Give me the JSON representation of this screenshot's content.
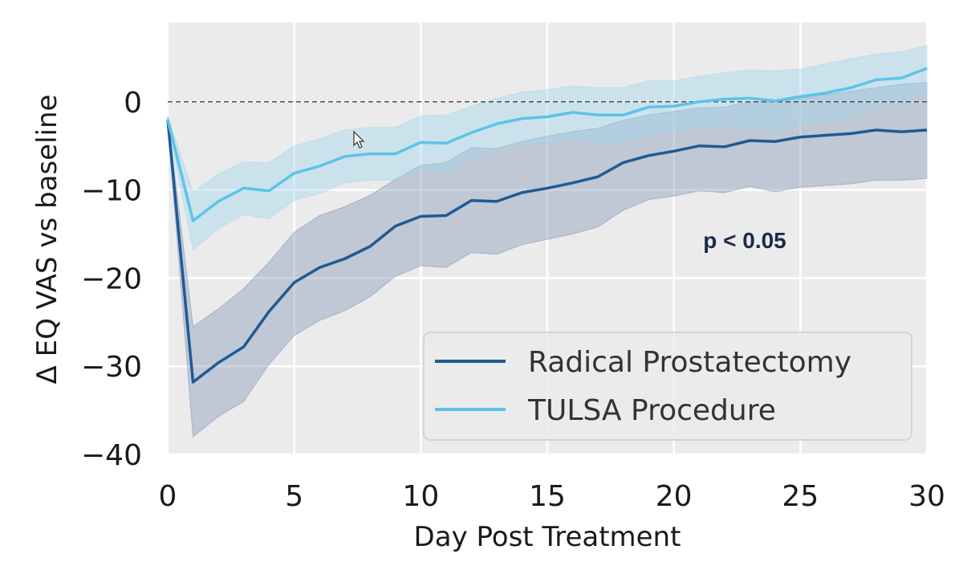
{
  "chart_data": {
    "type": "line",
    "title": "",
    "xlabel": "Day Post Treatment",
    "ylabel": "Δ EQ VAS vs baseline",
    "xlim": [
      0,
      30
    ],
    "ylim": [
      -40,
      9
    ],
    "xticks": [
      0,
      5,
      10,
      15,
      20,
      25,
      30
    ],
    "yticks": [
      -40,
      -30,
      -20,
      -10,
      0
    ],
    "xtick_labels": [
      "0",
      "5",
      "10",
      "15",
      "20",
      "25",
      "30"
    ],
    "ytick_labels": [
      "−40",
      "−30",
      "−20",
      "−10",
      "0"
    ],
    "grid": true,
    "reference_line": 0,
    "legend_position": "lower-right",
    "annotation": "p < 0.05",
    "x": [
      0,
      1,
      2,
      3,
      4,
      5,
      6,
      7,
      8,
      9,
      10,
      11,
      12,
      13,
      14,
      15,
      16,
      17,
      18,
      19,
      20,
      21,
      22,
      23,
      24,
      25,
      26,
      27,
      28,
      29,
      30
    ],
    "series": [
      {
        "name": "Radical Prostatectomy",
        "color": "#1f5a94",
        "band_color": "#7890b0",
        "values": [
          -2,
          -31.8,
          -29.6,
          -27.8,
          -23.8,
          -20.5,
          -18.8,
          -17.8,
          -16.4,
          -14.1,
          -13,
          -12.9,
          -11.2,
          -11.3,
          -10.3,
          -9.8,
          -9.2,
          -8.5,
          -6.9,
          -6.1,
          -5.6,
          -5,
          -5.1,
          -4.4,
          -4.5,
          -4,
          -3.8,
          -3.6,
          -3.2,
          -3.4,
          -3.2
        ],
        "upper": [
          -1.6,
          -25.5,
          -23.5,
          -21.2,
          -18.2,
          -14.8,
          -12.9,
          -11.9,
          -10.6,
          -8.8,
          -7.2,
          -6.9,
          -5.2,
          -5.3,
          -4.5,
          -3.9,
          -3.4,
          -3,
          -2.1,
          -1.5,
          -1.1,
          -0.7,
          -0.6,
          0,
          0,
          0.4,
          0.8,
          1.2,
          1.6,
          2,
          2.2
        ],
        "lower": [
          -2.4,
          -38,
          -35.7,
          -34,
          -29.8,
          -26.5,
          -24.8,
          -23.7,
          -22.1,
          -19.8,
          -18.6,
          -18.8,
          -17.1,
          -17.3,
          -16.2,
          -15.6,
          -15,
          -14.2,
          -12.3,
          -11.1,
          -10.7,
          -10.1,
          -10.3,
          -9.6,
          -10.2,
          -9.7,
          -9.5,
          -9.3,
          -8.9,
          -8.9,
          -8.7
        ]
      },
      {
        "name": "TULSA Procedure",
        "color": "#5cc3e8",
        "band_color": "#a0d6ee",
        "values": [
          -2,
          -13.5,
          -11.3,
          -9.8,
          -10.1,
          -8.1,
          -7.3,
          -6.2,
          -5.9,
          -5.9,
          -4.6,
          -4.7,
          -3.5,
          -2.5,
          -1.9,
          -1.7,
          -1.2,
          -1.5,
          -1.5,
          -0.6,
          -0.5,
          0,
          0.3,
          0.4,
          0.1,
          0.6,
          1,
          1.6,
          2.5,
          2.7,
          3.8
        ],
        "upper": [
          -1.6,
          -10.2,
          -8.2,
          -6.8,
          -6.9,
          -5,
          -4.2,
          -3.2,
          -2.9,
          -2.9,
          -1.6,
          -1.5,
          -0.5,
          0.4,
          1.1,
          1.4,
          1.8,
          1.6,
          1.6,
          2.4,
          2.4,
          2.9,
          3.3,
          3.6,
          3.5,
          3.7,
          4.3,
          4.9,
          5.4,
          5.7,
          6.4
        ],
        "lower": [
          -2.4,
          -16.8,
          -14.4,
          -12.8,
          -13.3,
          -11.2,
          -10.4,
          -9.2,
          -8.9,
          -8.9,
          -7.6,
          -7.9,
          -6.5,
          -5.4,
          -4.9,
          -4.8,
          -4.2,
          -4.6,
          -4.6,
          -3.6,
          -3.4,
          -2.9,
          -2.7,
          -2.8,
          -3.3,
          -2.5,
          -2.3,
          -1.7,
          -0.4,
          -0.3,
          1.2
        ]
      }
    ]
  }
}
